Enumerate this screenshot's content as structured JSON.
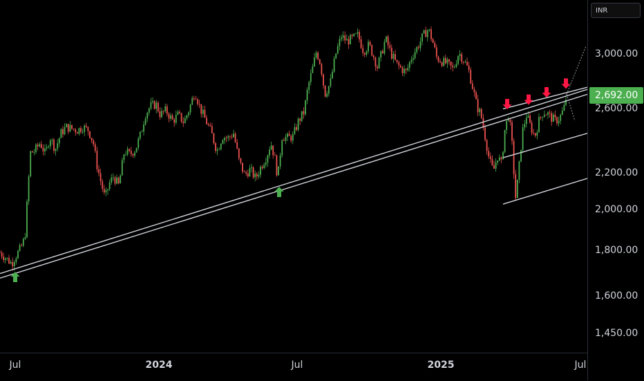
{
  "chart_data": {
    "type": "candlestick",
    "currency": "INR",
    "y_scale": "log",
    "ylim": [
      1380,
      3450
    ],
    "y_ticks": [
      {
        "value": 3000,
        "label": "3,000.00"
      },
      {
        "value": 2600,
        "label": "2,600.00"
      },
      {
        "value": 2200,
        "label": "2,200.00"
      },
      {
        "value": 2000,
        "label": "2,000.00"
      },
      {
        "value": 1800,
        "label": "1,800.00"
      },
      {
        "value": 1600,
        "label": "1,600.00"
      },
      {
        "value": 1450,
        "label": "1,450.00"
      }
    ],
    "x_ticks": [
      {
        "label": "Jul",
        "bold": false
      },
      {
        "label": "2024",
        "bold": true
      },
      {
        "label": "Jul",
        "bold": false
      },
      {
        "label": "2025",
        "bold": true
      },
      {
        "label": "Jul",
        "bold": false
      }
    ],
    "last_price": {
      "value": 2692,
      "label": "2,692.00",
      "color": "#4caf50"
    },
    "up_color": "#4caf50",
    "down_color": "#ef5350",
    "trend_line_color": "#d1d4dc",
    "price_path": [
      [
        0,
        1790
      ],
      [
        10,
        1760
      ],
      [
        17,
        1740
      ],
      [
        22,
        1770
      ],
      [
        30,
        1810
      ],
      [
        36,
        1860
      ],
      [
        40,
        2080
      ],
      [
        44,
        2320
      ],
      [
        50,
        2330
      ],
      [
        58,
        2380
      ],
      [
        66,
        2310
      ],
      [
        72,
        2420
      ],
      [
        80,
        2340
      ],
      [
        88,
        2440
      ],
      [
        96,
        2480
      ],
      [
        104,
        2470
      ],
      [
        112,
        2460
      ],
      [
        120,
        2480
      ],
      [
        128,
        2460
      ],
      [
        135,
        2380
      ],
      [
        140,
        2250
      ],
      [
        146,
        2150
      ],
      [
        152,
        2060
      ],
      [
        158,
        2140
      ],
      [
        164,
        2180
      ],
      [
        172,
        2130
      ],
      [
        180,
        2330
      ],
      [
        188,
        2310
      ],
      [
        196,
        2340
      ],
      [
        204,
        2440
      ],
      [
        210,
        2560
      ],
      [
        218,
        2620
      ],
      [
        226,
        2630
      ],
      [
        232,
        2560
      ],
      [
        240,
        2590
      ],
      [
        250,
        2520
      ],
      [
        258,
        2560
      ],
      [
        266,
        2510
      ],
      [
        274,
        2600
      ],
      [
        282,
        2720
      ],
      [
        290,
        2600
      ],
      [
        298,
        2520
      ],
      [
        306,
        2440
      ],
      [
        314,
        2330
      ],
      [
        322,
        2420
      ],
      [
        330,
        2410
      ],
      [
        338,
        2440
      ],
      [
        346,
        2270
      ],
      [
        354,
        2190
      ],
      [
        362,
        2220
      ],
      [
        370,
        2170
      ],
      [
        378,
        2240
      ],
      [
        386,
        2300
      ],
      [
        392,
        2380
      ],
      [
        398,
        2280
      ],
      [
        402,
        2170
      ],
      [
        408,
        2420
      ],
      [
        416,
        2410
      ],
      [
        424,
        2420
      ],
      [
        432,
        2520
      ],
      [
        440,
        2580
      ],
      [
        446,
        2760
      ],
      [
        452,
        2880
      ],
      [
        458,
        3020
      ],
      [
        464,
        2920
      ],
      [
        470,
        2700
      ],
      [
        478,
        2780
      ],
      [
        486,
        3000
      ],
      [
        494,
        3140
      ],
      [
        502,
        3100
      ],
      [
        510,
        3120
      ],
      [
        518,
        3150
      ],
      [
        526,
        3020
      ],
      [
        534,
        3070
      ],
      [
        540,
        2990
      ],
      [
        546,
        2900
      ],
      [
        552,
        3000
      ],
      [
        558,
        3120
      ],
      [
        566,
        3000
      ],
      [
        574,
        2920
      ],
      [
        582,
        2880
      ],
      [
        588,
        2860
      ],
      [
        596,
        2980
      ],
      [
        604,
        3050
      ],
      [
        612,
        3140
      ],
      [
        620,
        3200
      ],
      [
        626,
        3100
      ],
      [
        632,
        2970
      ],
      [
        640,
        2940
      ],
      [
        648,
        2920
      ],
      [
        656,
        2880
      ],
      [
        664,
        3010
      ],
      [
        670,
        2960
      ],
      [
        678,
        2880
      ],
      [
        684,
        2750
      ],
      [
        690,
        2620
      ],
      [
        696,
        2560
      ],
      [
        702,
        2420
      ],
      [
        708,
        2280
      ],
      [
        714,
        2210
      ],
      [
        720,
        2300
      ],
      [
        726,
        2250
      ],
      [
        730,
        2450
      ],
      [
        736,
        2560
      ],
      [
        740,
        2430
      ],
      [
        746,
        2060
      ],
      [
        750,
        2180
      ],
      [
        756,
        2450
      ],
      [
        762,
        2560
      ],
      [
        768,
        2480
      ],
      [
        774,
        2420
      ],
      [
        780,
        2520
      ],
      [
        786,
        2580
      ],
      [
        792,
        2570
      ],
      [
        798,
        2540
      ],
      [
        804,
        2520
      ],
      [
        810,
        2540
      ],
      [
        816,
        2600
      ],
      [
        820,
        2692
      ]
    ],
    "annotations": {
      "up_arrows": [
        {
          "x": 22,
          "price": 1740
        },
        {
          "x": 404,
          "price": 2170
        }
      ],
      "down_arrows": [
        {
          "x": 734,
          "price": 2560
        },
        {
          "x": 765,
          "price": 2590
        },
        {
          "x": 791,
          "price": 2640
        },
        {
          "x": 819,
          "price": 2700
        }
      ]
    },
    "trend_lines": [
      {
        "x1": 0,
        "p1": 1695,
        "x2": 850,
        "p2": 2735
      },
      {
        "x1": 0,
        "p1": 1675,
        "x2": 850,
        "p2": 2700
      },
      {
        "x1": 728,
        "p1": 2600,
        "x2": 850,
        "p2": 2750
      },
      {
        "x1": 728,
        "p1": 2290,
        "x2": 850,
        "p2": 2440
      },
      {
        "x1": 728,
        "p1": 2030,
        "x2": 850,
        "p2": 2170
      }
    ]
  }
}
